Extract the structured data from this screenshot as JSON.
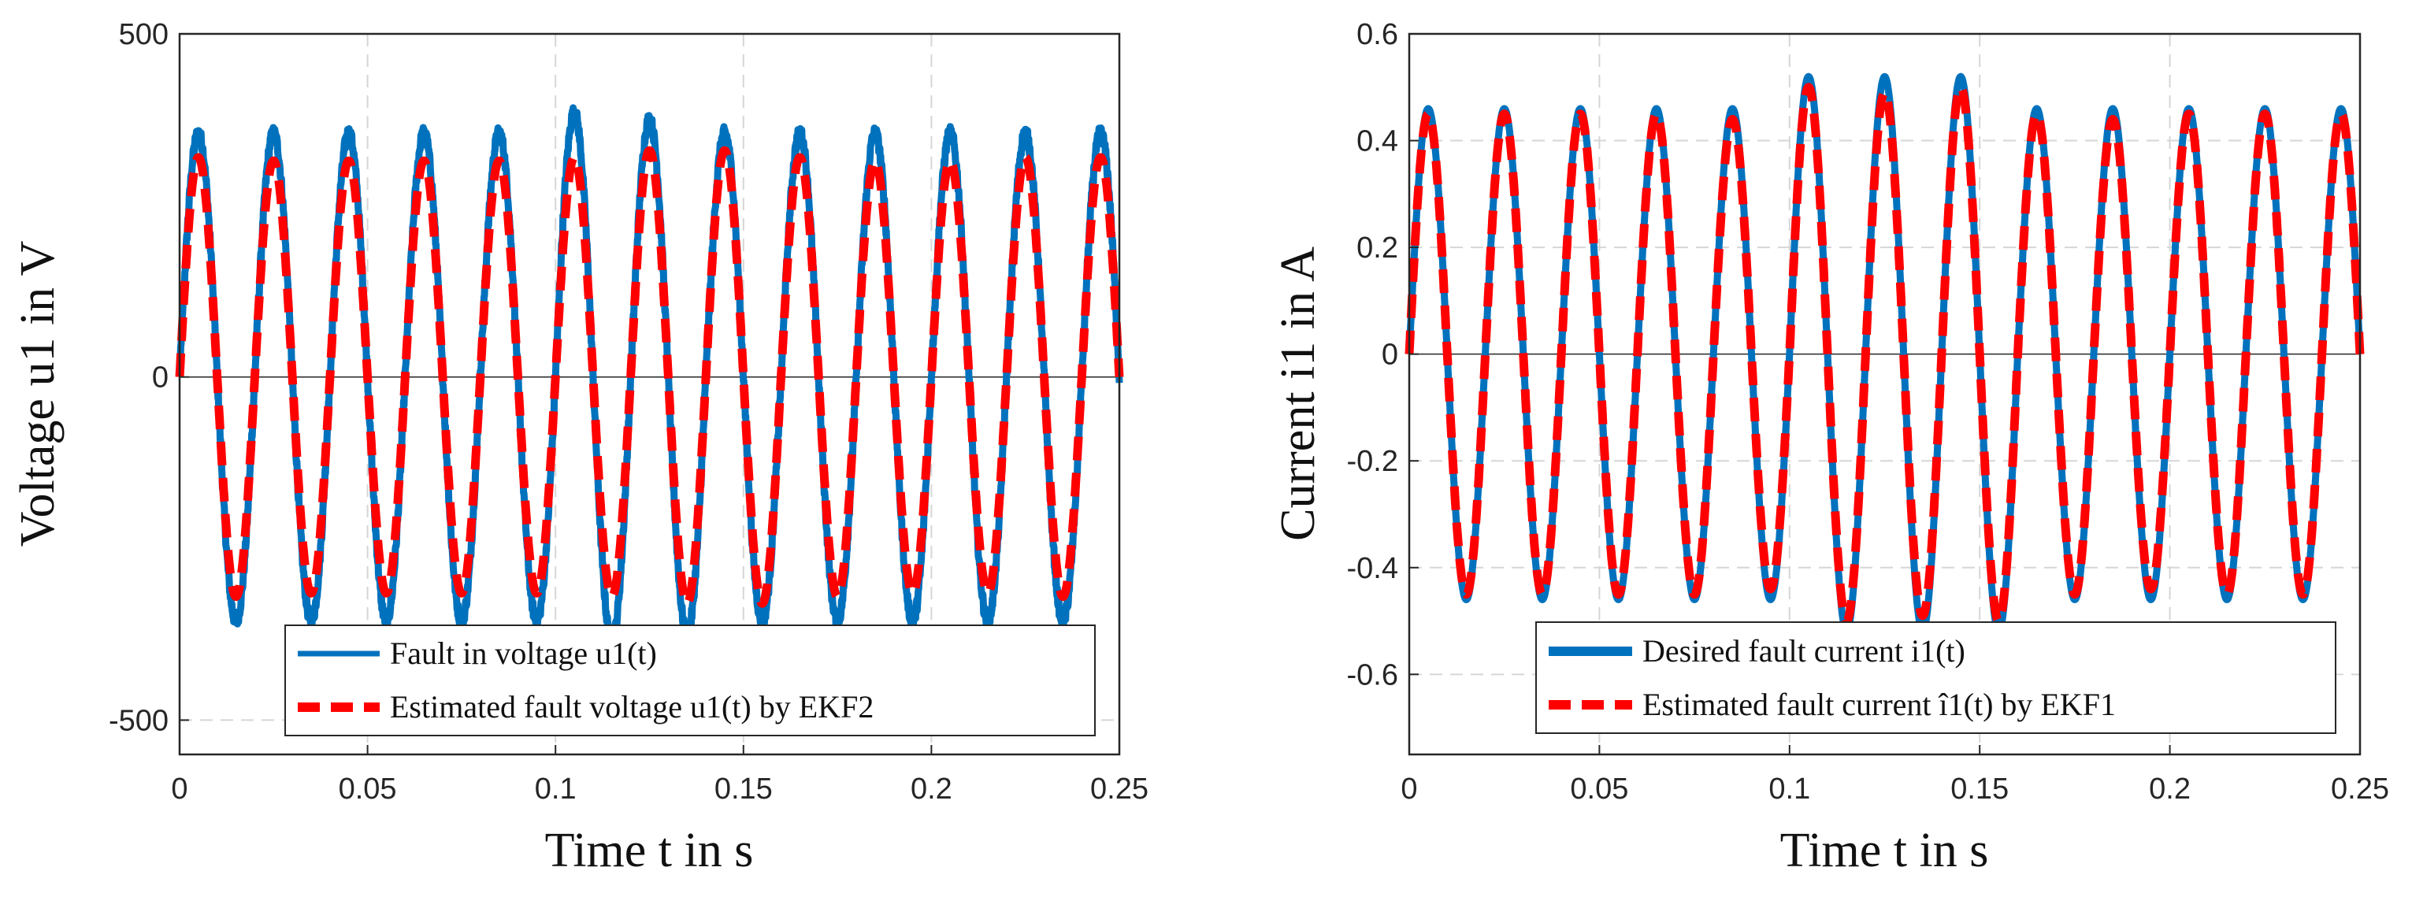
{
  "chart_data": [
    {
      "type": "line",
      "xlabel": "Time t in s",
      "ylabel": "Voltage u1 in V",
      "xlim": [
        0,
        0.25
      ],
      "ylim": [
        -550,
        500
      ],
      "xticks": [
        0,
        0.05,
        0.1,
        0.15,
        0.2,
        0.25
      ],
      "xtick_labels": [
        "0",
        "0.05",
        "0.1",
        "0.15",
        "0.2",
        "0.25"
      ],
      "yticks": [
        500,
        0,
        -500
      ],
      "ytick_labels": [
        "500",
        "0",
        "-500"
      ],
      "grid": true,
      "legend_position": "bottom-right",
      "series": [
        {
          "name": "Fault in voltage u1(t)",
          "color": "#0072BD",
          "style": "solid",
          "frequency_hz": 50,
          "peak_amplitudes": [
            355,
            355,
            355,
            355,
            355,
            385,
            375,
            355,
            355,
            355,
            355,
            355
          ],
          "noise": true
        },
        {
          "name": "Estimated fault voltage u1(t) by EKF2",
          "color": "#FF0000",
          "style": "dashed",
          "frequency_hz": 50,
          "peak_amplitudes": [
            320,
            315,
            315,
            315,
            315,
            320,
            330,
            330,
            320,
            315,
            315,
            320
          ],
          "noise": false
        }
      ]
    },
    {
      "type": "line",
      "xlabel": "Time t in s",
      "ylabel": "Current i1 in A",
      "xlim": [
        0,
        0.25
      ],
      "ylim": [
        -0.75,
        0.6
      ],
      "xticks": [
        0,
        0.05,
        0.1,
        0.15,
        0.2,
        0.25
      ],
      "xtick_labels": [
        "0",
        "0.05",
        "0.1",
        "0.15",
        "0.2",
        "0.25"
      ],
      "yticks": [
        0.6,
        0.4,
        0.2,
        0,
        -0.2,
        -0.4,
        -0.6
      ],
      "ytick_labels": [
        "0.6",
        "0.4",
        "0.2",
        "0",
        "-0.2",
        "-0.4",
        "-0.6"
      ],
      "grid": true,
      "legend_position": "bottom-right",
      "series": [
        {
          "name": "Desired fault current i1(t)",
          "color": "#0072BD",
          "style": "solid",
          "frequency_hz": 50,
          "peak_amplitudes": [
            0.46,
            0.46,
            0.46,
            0.46,
            0.46,
            0.52,
            0.52,
            0.52,
            0.46,
            0.46,
            0.46,
            0.46
          ]
        },
        {
          "name": "Estimated fault current î1(t) by EKF1",
          "color": "#FF0000",
          "style": "dashed",
          "frequency_hz": 50,
          "peak_amplitudes": [
            0.45,
            0.45,
            0.45,
            0.45,
            0.44,
            0.5,
            0.49,
            0.5,
            0.45,
            0.44,
            0.45,
            0.45
          ]
        }
      ]
    }
  ]
}
